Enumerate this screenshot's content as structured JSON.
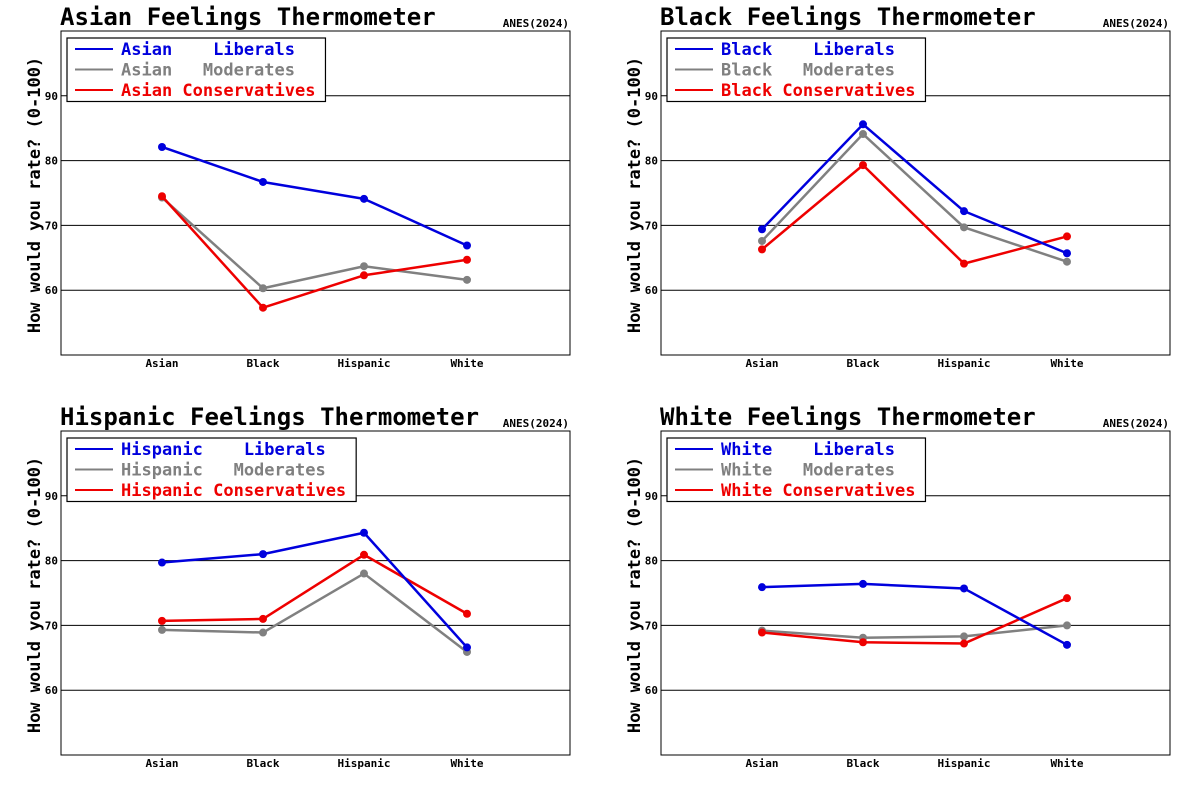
{
  "chart_data": [
    {
      "type": "line",
      "title": "Asian Feelings Thermometer",
      "source": "ANES(2024)",
      "ylabel": "How would you rate? (0-100)",
      "xlabel": "",
      "categories": [
        "Asian",
        "Black",
        "Hispanic",
        "White"
      ],
      "ylim": [
        50,
        100
      ],
      "yticks": [
        60,
        70,
        80,
        90
      ],
      "grid": "horizontal",
      "legend_position": "top-left",
      "series": [
        {
          "name": "Asian    Liberals",
          "color": "#0000dd",
          "values": [
            82.1,
            76.7,
            74.1,
            66.9
          ]
        },
        {
          "name": "Asian   Moderates",
          "color": "#808080",
          "values": [
            74.3,
            60.3,
            63.7,
            61.6
          ]
        },
        {
          "name": "Asian Conservatives",
          "color": "#ee0000",
          "values": [
            74.5,
            57.3,
            62.3,
            64.7
          ]
        }
      ]
    },
    {
      "type": "line",
      "title": "Black Feelings Thermometer",
      "source": "ANES(2024)",
      "ylabel": "How would you rate? (0-100)",
      "xlabel": "",
      "categories": [
        "Asian",
        "Black",
        "Hispanic",
        "White"
      ],
      "ylim": [
        50,
        100
      ],
      "yticks": [
        60,
        70,
        80,
        90
      ],
      "grid": "horizontal",
      "legend_position": "top-left",
      "series": [
        {
          "name": "Black    Liberals",
          "color": "#0000dd",
          "values": [
            69.4,
            85.6,
            72.2,
            65.7
          ]
        },
        {
          "name": "Black   Moderates",
          "color": "#808080",
          "values": [
            67.6,
            84.1,
            69.7,
            64.4
          ]
        },
        {
          "name": "Black Conservatives",
          "color": "#ee0000",
          "values": [
            66.3,
            79.3,
            64.1,
            68.3
          ]
        }
      ]
    },
    {
      "type": "line",
      "title": "Hispanic Feelings Thermometer",
      "source": "ANES(2024)",
      "ylabel": "How would you rate? (0-100)",
      "xlabel": "",
      "categories": [
        "Asian",
        "Black",
        "Hispanic",
        "White"
      ],
      "ylim": [
        50,
        100
      ],
      "yticks": [
        60,
        70,
        80,
        90
      ],
      "grid": "horizontal",
      "legend_position": "top-left",
      "series": [
        {
          "name": "Hispanic    Liberals",
          "color": "#0000dd",
          "values": [
            79.7,
            81.0,
            84.3,
            66.6
          ]
        },
        {
          "name": "Hispanic   Moderates",
          "color": "#808080",
          "values": [
            69.3,
            68.9,
            78.0,
            65.9
          ]
        },
        {
          "name": "Hispanic Conservatives",
          "color": "#ee0000",
          "values": [
            70.7,
            71.0,
            80.9,
            71.8
          ]
        }
      ]
    },
    {
      "type": "line",
      "title": "White Feelings Thermometer",
      "source": "ANES(2024)",
      "ylabel": "How would you rate? (0-100)",
      "xlabel": "",
      "categories": [
        "Asian",
        "Black",
        "Hispanic",
        "White"
      ],
      "ylim": [
        50,
        100
      ],
      "yticks": [
        60,
        70,
        80,
        90
      ],
      "grid": "horizontal",
      "legend_position": "top-left",
      "series": [
        {
          "name": "White    Liberals",
          "color": "#0000dd",
          "values": [
            75.9,
            76.4,
            75.7,
            67.0
          ]
        },
        {
          "name": "White   Moderates",
          "color": "#808080",
          "values": [
            69.2,
            68.1,
            68.3,
            70.0
          ]
        },
        {
          "name": "White Conservatives",
          "color": "#ee0000",
          "values": [
            68.9,
            67.4,
            67.2,
            74.2
          ]
        }
      ]
    }
  ]
}
